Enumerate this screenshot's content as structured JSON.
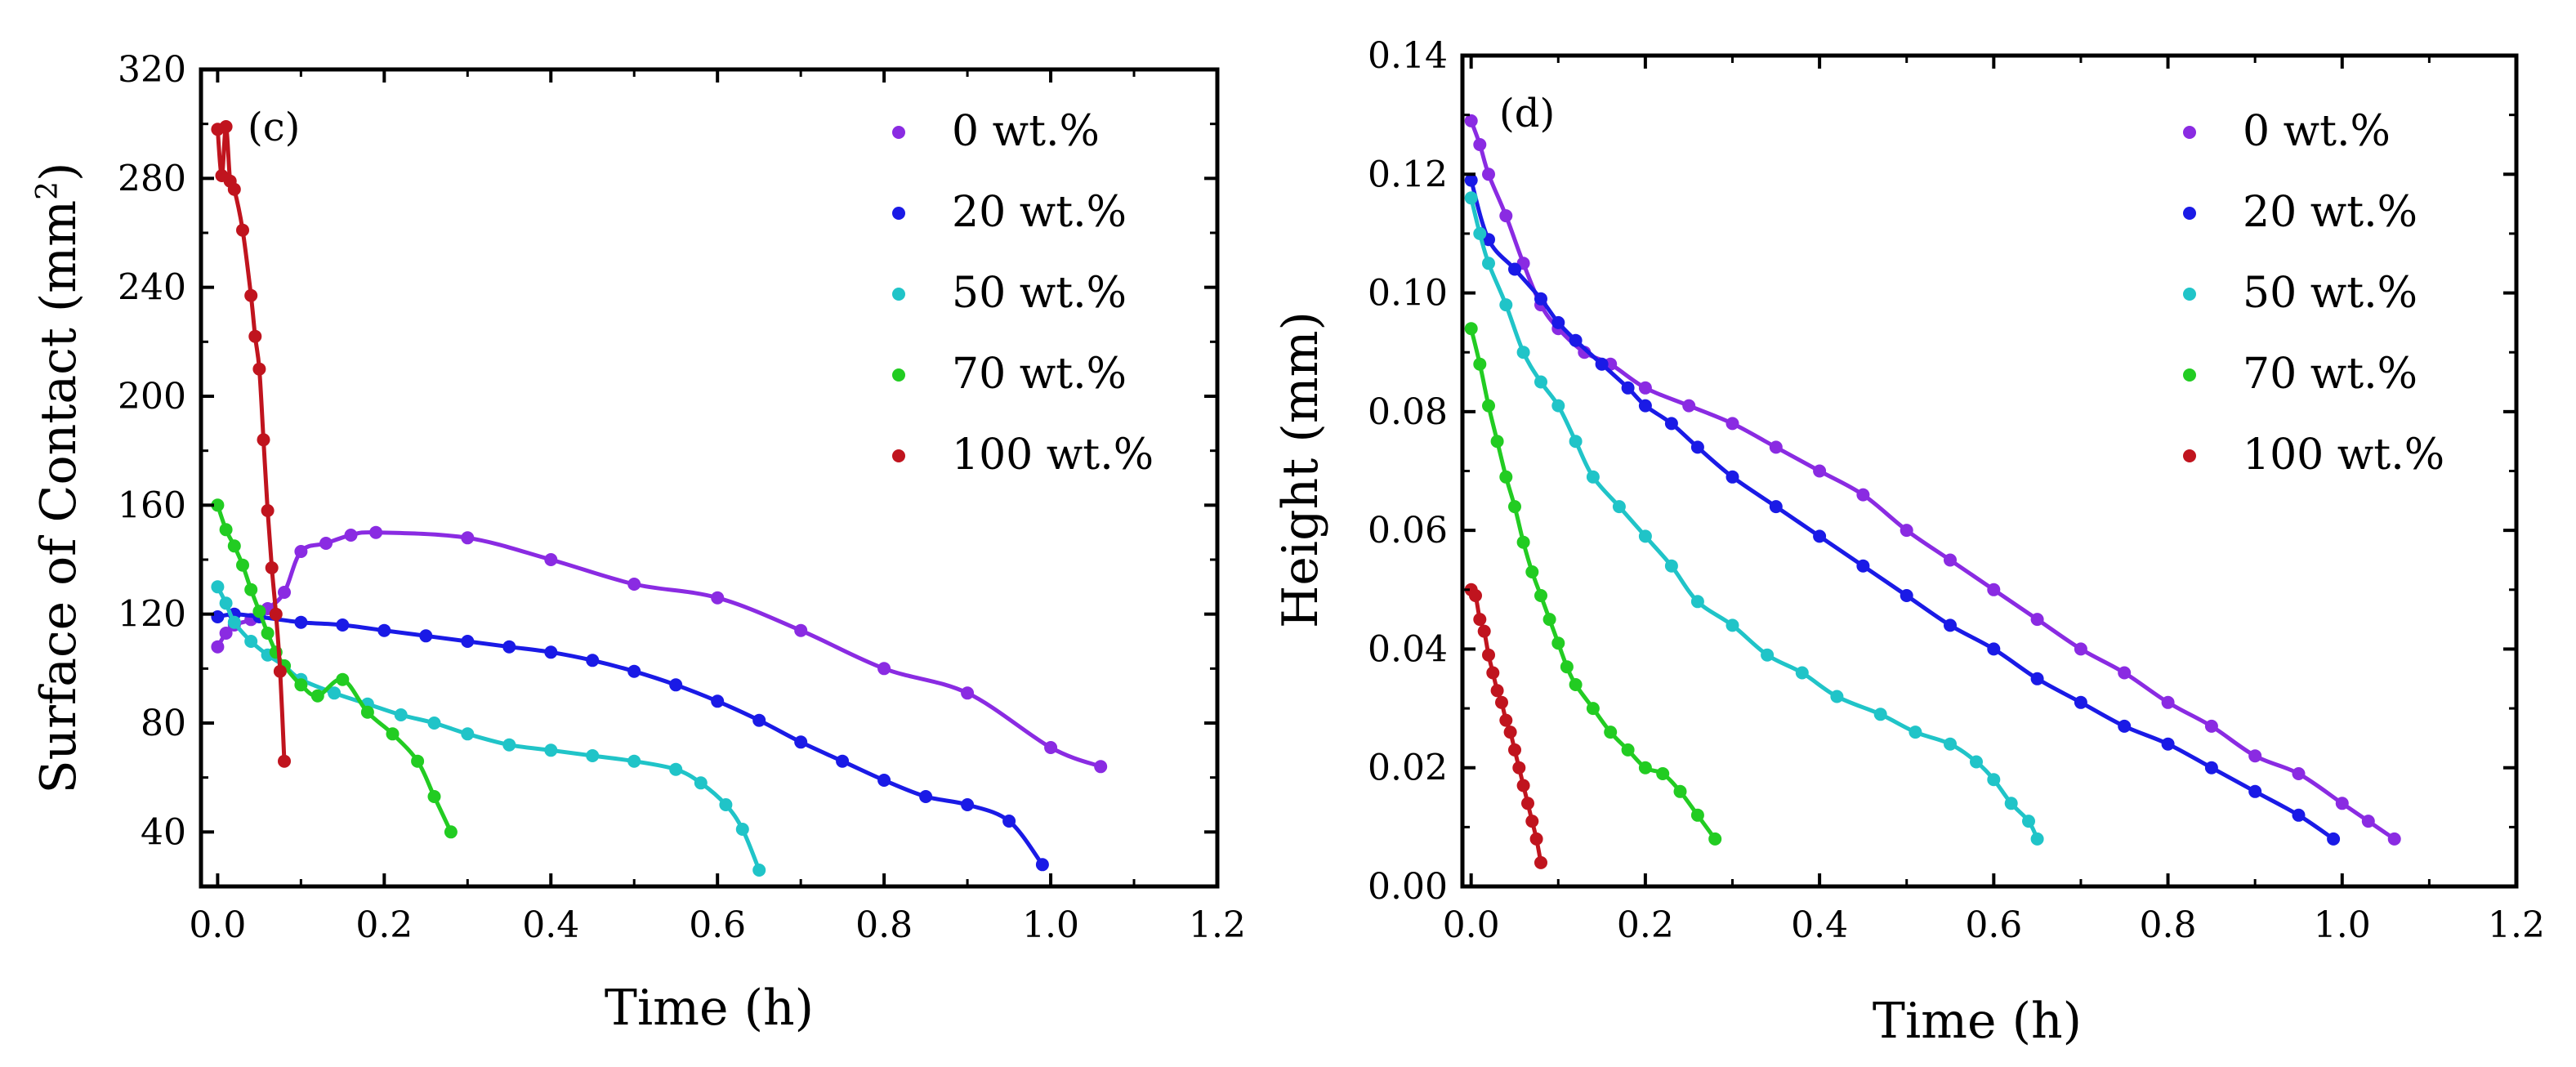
{
  "series_styles": [
    {
      "name": "0 wt.%",
      "color": "#8a2be2"
    },
    {
      "name": "20 wt.%",
      "color": "#1a1ae6"
    },
    {
      "name": "50 wt.%",
      "color": "#20c4c8"
    },
    {
      "name": "70 wt.%",
      "color": "#22cc22"
    },
    {
      "name": "100 wt.%",
      "color": "#c0141e"
    }
  ],
  "chart_data": [
    {
      "type": "scatter",
      "panel_label": "(c)",
      "xlabel": "Time (h)",
      "ylabel": "Surface of Contact (mm",
      "ylabel_sup": "2",
      "ylabel_end": ")",
      "xlim": [
        -0.02,
        1.2
      ],
      "ylim": [
        20,
        320
      ],
      "xticks": [
        0.0,
        0.2,
        0.4,
        0.6,
        0.8,
        1.0,
        1.2
      ],
      "xtick_labels": [
        "0.0",
        "0.2",
        "0.4",
        "0.6",
        "0.8",
        "1.0",
        "1.2"
      ],
      "yticks": [
        40,
        80,
        120,
        160,
        200,
        240,
        280,
        320
      ],
      "ytick_labels": [
        "40",
        "80",
        "120",
        "160",
        "200",
        "240",
        "280",
        "320"
      ],
      "legend_position": "top-right",
      "series": [
        {
          "name": "0 wt.%",
          "x": [
            0.0,
            0.01,
            0.02,
            0.04,
            0.06,
            0.08,
            0.1,
            0.13,
            0.16,
            0.19,
            0.3,
            0.4,
            0.5,
            0.6,
            0.7,
            0.8,
            0.9,
            1.0,
            1.06
          ],
          "y": [
            108,
            113,
            116,
            118,
            122,
            128,
            143,
            146,
            149,
            150,
            148,
            140,
            131,
            126,
            114,
            100,
            91,
            71,
            64
          ]
        },
        {
          "name": "20 wt.%",
          "x": [
            0.0,
            0.02,
            0.05,
            0.1,
            0.15,
            0.2,
            0.25,
            0.3,
            0.35,
            0.4,
            0.45,
            0.5,
            0.55,
            0.6,
            0.65,
            0.7,
            0.75,
            0.8,
            0.85,
            0.9,
            0.95,
            0.99
          ],
          "y": [
            119,
            120,
            119,
            117,
            116,
            114,
            112,
            110,
            108,
            106,
            103,
            99,
            94,
            88,
            81,
            73,
            66,
            59,
            53,
            50,
            44,
            28
          ]
        },
        {
          "name": "50 wt.%",
          "x": [
            0.0,
            0.01,
            0.02,
            0.04,
            0.06,
            0.08,
            0.1,
            0.14,
            0.18,
            0.22,
            0.26,
            0.3,
            0.35,
            0.4,
            0.45,
            0.5,
            0.55,
            0.58,
            0.61,
            0.63,
            0.65
          ],
          "y": [
            130,
            124,
            117,
            110,
            105,
            101,
            96,
            91,
            87,
            83,
            80,
            76,
            72,
            70,
            68,
            66,
            63,
            58,
            50,
            41,
            26
          ]
        },
        {
          "name": "70 wt.%",
          "x": [
            0.0,
            0.01,
            0.02,
            0.03,
            0.04,
            0.05,
            0.06,
            0.07,
            0.08,
            0.1,
            0.12,
            0.15,
            0.18,
            0.21,
            0.24,
            0.26,
            0.28
          ],
          "y": [
            160,
            151,
            145,
            138,
            129,
            121,
            113,
            106,
            101,
            94,
            90,
            96,
            84,
            76,
            66,
            53,
            40
          ]
        },
        {
          "name": "100 wt.%",
          "x": [
            0.0,
            0.005,
            0.01,
            0.015,
            0.02,
            0.03,
            0.04,
            0.045,
            0.05,
            0.055,
            0.06,
            0.065,
            0.07,
            0.075,
            0.08
          ],
          "y": [
            298,
            281,
            299,
            279,
            276,
            261,
            237,
            222,
            210,
            184,
            158,
            137,
            120,
            99,
            66
          ]
        }
      ]
    },
    {
      "type": "scatter",
      "panel_label": "(d)",
      "xlabel": "Time (h)",
      "ylabel": "Height (mm)",
      "xlim": [
        -0.01,
        1.2
      ],
      "ylim": [
        0.0,
        0.14
      ],
      "xticks": [
        0.0,
        0.2,
        0.4,
        0.6,
        0.8,
        1.0,
        1.2
      ],
      "xtick_labels": [
        "0.0",
        "0.2",
        "0.4",
        "0.6",
        "0.8",
        "1.0",
        "1.2"
      ],
      "yticks": [
        0.0,
        0.02,
        0.04,
        0.06,
        0.08,
        0.1,
        0.12,
        0.14
      ],
      "ytick_labels": [
        "0.00",
        "0.02",
        "0.04",
        "0.06",
        "0.08",
        "0.10",
        "0.12",
        "0.14"
      ],
      "legend_position": "top-right",
      "series": [
        {
          "name": "0 wt.%",
          "x": [
            0.0,
            0.01,
            0.02,
            0.04,
            0.06,
            0.08,
            0.1,
            0.13,
            0.16,
            0.2,
            0.25,
            0.3,
            0.35,
            0.4,
            0.45,
            0.5,
            0.55,
            0.6,
            0.65,
            0.7,
            0.75,
            0.8,
            0.85,
            0.9,
            0.95,
            1.0,
            1.03,
            1.06
          ],
          "y": [
            0.129,
            0.125,
            0.12,
            0.113,
            0.105,
            0.098,
            0.094,
            0.09,
            0.088,
            0.084,
            0.081,
            0.078,
            0.074,
            0.07,
            0.066,
            0.06,
            0.055,
            0.05,
            0.045,
            0.04,
            0.036,
            0.031,
            0.027,
            0.022,
            0.019,
            0.014,
            0.011,
            0.008
          ]
        },
        {
          "name": "20 wt.%",
          "x": [
            0.0,
            0.02,
            0.05,
            0.08,
            0.1,
            0.12,
            0.15,
            0.18,
            0.2,
            0.23,
            0.26,
            0.3,
            0.35,
            0.4,
            0.45,
            0.5,
            0.55,
            0.6,
            0.65,
            0.7,
            0.75,
            0.8,
            0.85,
            0.9,
            0.95,
            0.99
          ],
          "y": [
            0.119,
            0.109,
            0.104,
            0.099,
            0.095,
            0.092,
            0.088,
            0.084,
            0.081,
            0.078,
            0.074,
            0.069,
            0.064,
            0.059,
            0.054,
            0.049,
            0.044,
            0.04,
            0.035,
            0.031,
            0.027,
            0.024,
            0.02,
            0.016,
            0.012,
            0.008
          ]
        },
        {
          "name": "50 wt.%",
          "x": [
            0.0,
            0.01,
            0.02,
            0.04,
            0.06,
            0.08,
            0.1,
            0.12,
            0.14,
            0.17,
            0.2,
            0.23,
            0.26,
            0.3,
            0.34,
            0.38,
            0.42,
            0.47,
            0.51,
            0.55,
            0.58,
            0.6,
            0.62,
            0.64,
            0.65
          ],
          "y": [
            0.116,
            0.11,
            0.105,
            0.098,
            0.09,
            0.085,
            0.081,
            0.075,
            0.069,
            0.064,
            0.059,
            0.054,
            0.048,
            0.044,
            0.039,
            0.036,
            0.032,
            0.029,
            0.026,
            0.024,
            0.021,
            0.018,
            0.014,
            0.011,
            0.008
          ]
        },
        {
          "name": "70 wt.%",
          "x": [
            0.0,
            0.01,
            0.02,
            0.03,
            0.04,
            0.05,
            0.06,
            0.07,
            0.08,
            0.09,
            0.1,
            0.11,
            0.12,
            0.14,
            0.16,
            0.18,
            0.2,
            0.22,
            0.24,
            0.26,
            0.28
          ],
          "y": [
            0.094,
            0.088,
            0.081,
            0.075,
            0.069,
            0.064,
            0.058,
            0.053,
            0.049,
            0.045,
            0.041,
            0.037,
            0.034,
            0.03,
            0.026,
            0.023,
            0.02,
            0.019,
            0.016,
            0.012,
            0.008
          ]
        },
        {
          "name": "100 wt.%",
          "x": [
            0.0,
            0.005,
            0.01,
            0.015,
            0.02,
            0.025,
            0.03,
            0.035,
            0.04,
            0.045,
            0.05,
            0.055,
            0.06,
            0.065,
            0.07,
            0.075,
            0.08
          ],
          "y": [
            0.05,
            0.049,
            0.045,
            0.043,
            0.039,
            0.036,
            0.033,
            0.031,
            0.028,
            0.026,
            0.023,
            0.02,
            0.017,
            0.014,
            0.011,
            0.008,
            0.004
          ]
        }
      ]
    }
  ]
}
